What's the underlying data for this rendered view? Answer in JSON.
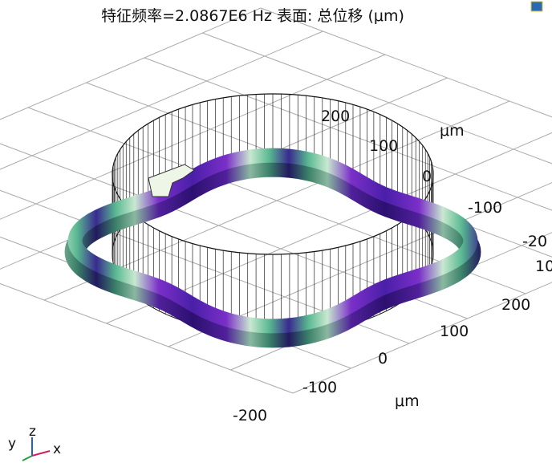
{
  "header": {
    "title": "特征频率=2.0867E6 Hz   表面: 总位移 (μm)"
  },
  "axes": {
    "back": {
      "ticks": [
        "200",
        "100",
        "0",
        "-100",
        "-20",
        "10"
      ],
      "unit": "μm"
    },
    "front": {
      "ticks": [
        "200",
        "100",
        "0",
        "-100",
        "-200"
      ],
      "unit": "μm"
    }
  },
  "triad": {
    "y": "y",
    "z": "z",
    "x": "x"
  }
}
